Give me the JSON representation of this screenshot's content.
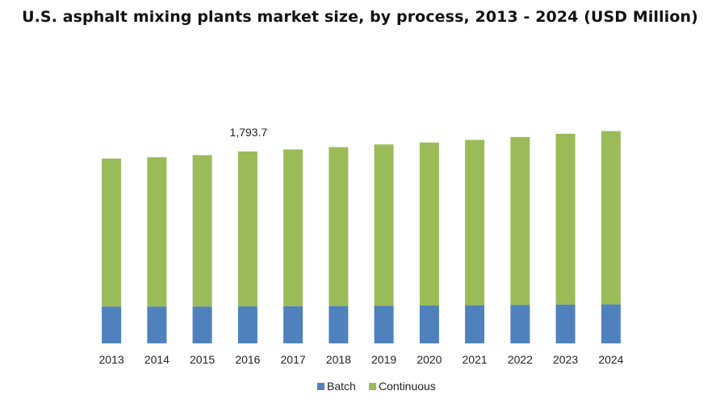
{
  "chart_data": {
    "type": "bar",
    "stacked": true,
    "title": "U.S. asphalt mixing plants market size, by process, 2013 - 2024 (USD Million)",
    "xlabel": "",
    "ylabel": "",
    "categories": [
      "2013",
      "2014",
      "2015",
      "2016",
      "2017",
      "2018",
      "2019",
      "2020",
      "2021",
      "2022",
      "2023",
      "2024"
    ],
    "series": [
      {
        "name": "Batch",
        "color": "#4f81bd",
        "values": [
          345,
          345,
          345,
          346,
          348,
          350,
          352,
          355,
          357,
          360,
          362,
          365
        ]
      },
      {
        "name": "Continuous",
        "color": "#9bbb59",
        "values": [
          1383,
          1395,
          1415,
          1448,
          1465,
          1485,
          1508,
          1523,
          1546,
          1570,
          1597,
          1620
        ]
      }
    ],
    "data_labels": [
      {
        "category": "2016",
        "text": "1,793.7"
      }
    ],
    "ylim": [
      0,
      2300
    ],
    "grid": false,
    "legend_position": "bottom"
  }
}
